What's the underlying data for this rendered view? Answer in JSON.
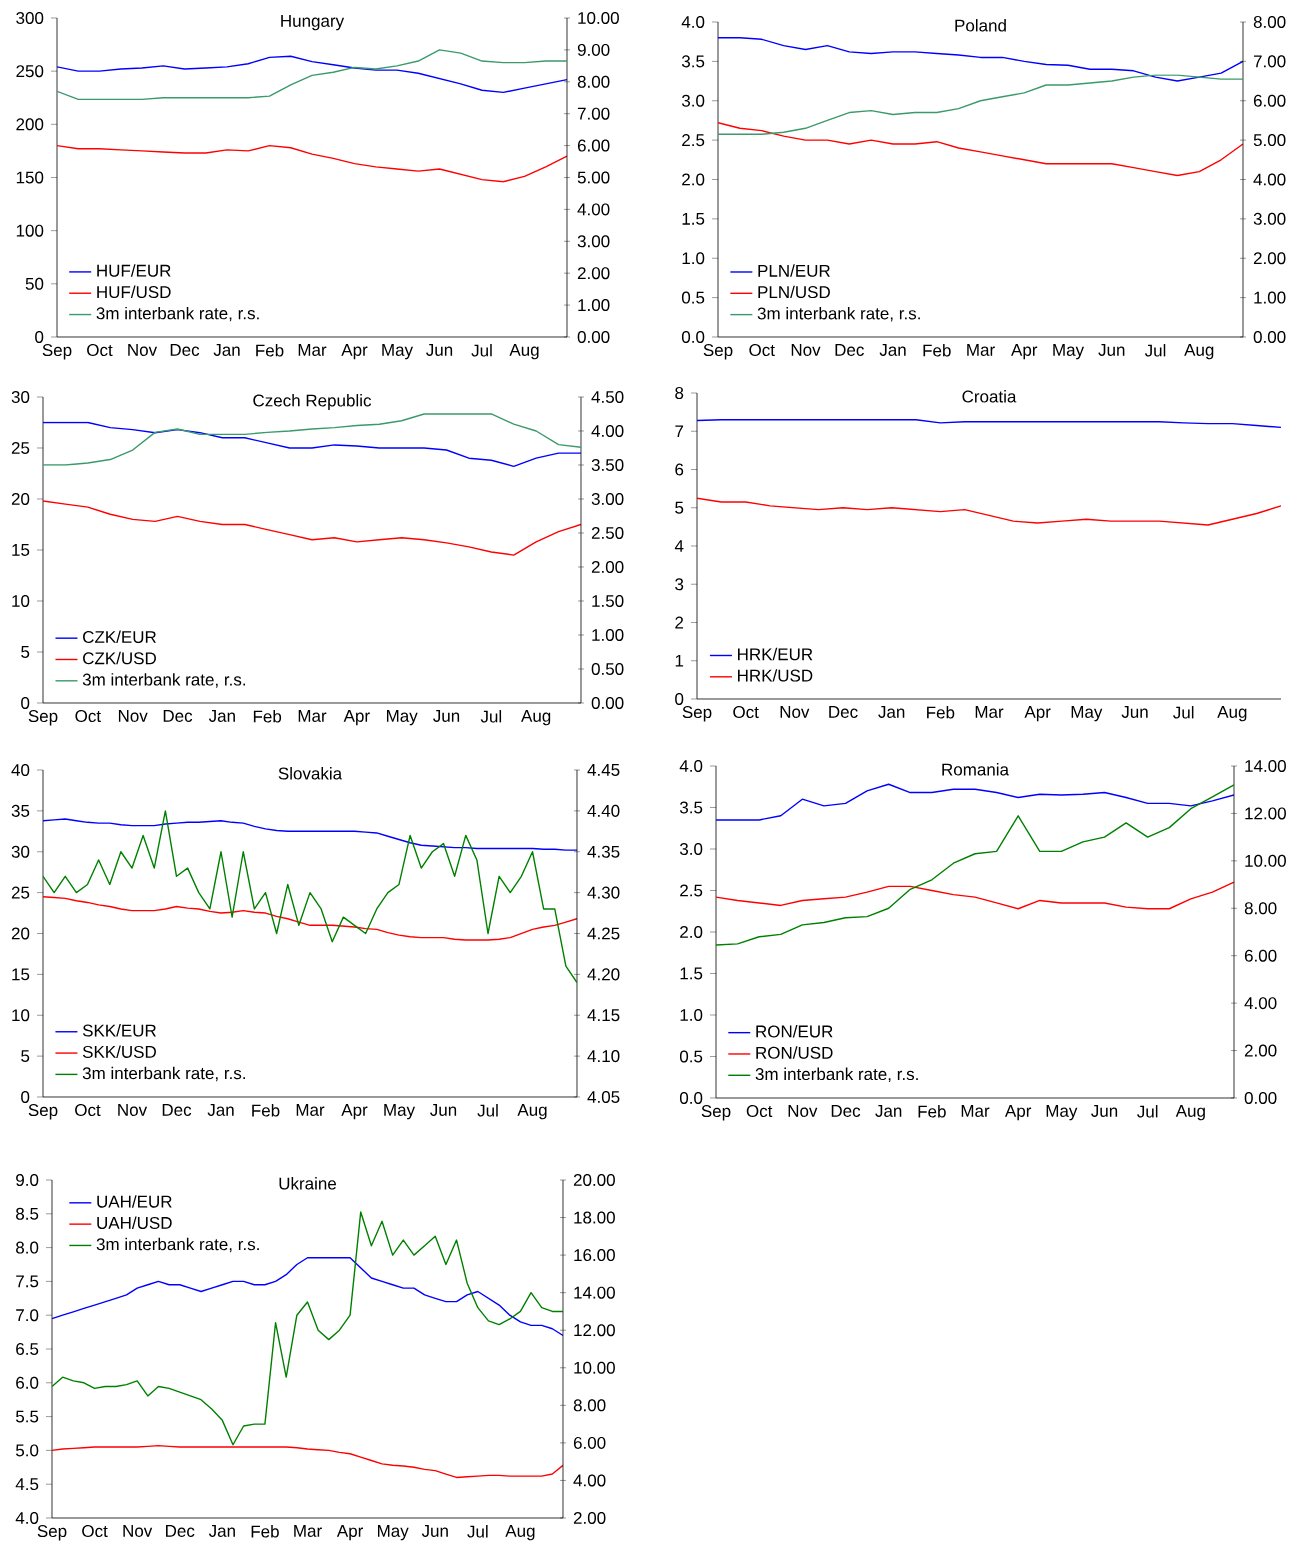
{
  "chart_data": [
    {
      "type": "line",
      "title": "Hungary",
      "legend": "bottom left",
      "categories": [
        "Sep",
        null,
        "Oct",
        null,
        "Nov",
        null,
        "Dec",
        null,
        "Jan",
        null,
        "Feb",
        null,
        "Mar",
        null,
        "Apr",
        null,
        "May",
        null,
        "Jun",
        null,
        "Jul",
        null,
        "Aug",
        null,
        null
      ],
      "ylim": [
        0,
        300
      ],
      "yticks": [
        0,
        50,
        100,
        150,
        200,
        250,
        300
      ],
      "y2lim": [
        0,
        10
      ],
      "y2ticks": [
        {
          "value": 0,
          "label": "0.00"
        },
        {
          "value": 1,
          "label": "1.00"
        },
        {
          "value": 2,
          "label": "2.00"
        },
        {
          "value": 3,
          "label": "3.00"
        },
        {
          "value": 4,
          "label": "4.00"
        },
        {
          "value": 5,
          "label": "5.00"
        },
        {
          "value": 6,
          "label": "6.00"
        },
        {
          "value": 7,
          "label": "7.00"
        },
        {
          "value": 8,
          "label": "8.00"
        },
        {
          "value": 9,
          "label": "9.00"
        },
        {
          "value": 10,
          "label": "10.00"
        }
      ],
      "series": [
        {
          "name": "HUF/EUR",
          "color": "#0000ff",
          "values": [
            254,
            250,
            250,
            252,
            253,
            255,
            252,
            253,
            254,
            257,
            263,
            264,
            259,
            256,
            253,
            251,
            251,
            248,
            243,
            238,
            232,
            230,
            234,
            238,
            242
          ]
        },
        {
          "name": "HUF/USD",
          "color": "#ff0000",
          "values": [
            180,
            177,
            177,
            176,
            175,
            174,
            173,
            173,
            176,
            175,
            180,
            178,
            172,
            168,
            163,
            160,
            158,
            156,
            158,
            153,
            148,
            146,
            151,
            160,
            170
          ]
        },
        {
          "name": "3m interbank rate, r.s.",
          "color": "#3a9a6a",
          "axis": "y2",
          "values": [
            7.7,
            7.45,
            7.45,
            7.45,
            7.45,
            7.5,
            7.5,
            7.5,
            7.5,
            7.5,
            7.55,
            7.9,
            8.2,
            8.3,
            8.45,
            8.4,
            8.5,
            8.65,
            9.0,
            8.9,
            8.65,
            8.6,
            8.6,
            8.65,
            8.65
          ]
        }
      ]
    },
    {
      "type": "line",
      "title": "Poland",
      "legend": "bottom left",
      "categories": [
        "Sep",
        null,
        "Oct",
        null,
        "Nov",
        null,
        "Dec",
        null,
        "Jan",
        null,
        "Feb",
        null,
        "Mar",
        null,
        "Apr",
        null,
        "May",
        null,
        "Jun",
        null,
        "Jul",
        null,
        "Aug",
        null,
        null
      ],
      "ylim": [
        0,
        4
      ],
      "yticks": [
        {
          "value": 0,
          "label": "0.0"
        },
        {
          "value": 0.5,
          "label": "0.5"
        },
        {
          "value": 1,
          "label": "1.0"
        },
        {
          "value": 1.5,
          "label": "1.5"
        },
        {
          "value": 2,
          "label": "2.0"
        },
        {
          "value": 2.5,
          "label": "2.5"
        },
        {
          "value": 3,
          "label": "3.0"
        },
        {
          "value": 3.5,
          "label": "3.5"
        },
        {
          "value": 4,
          "label": "4.0"
        }
      ],
      "y2lim": [
        0,
        8
      ],
      "y2ticks": [
        {
          "value": 0,
          "label": "0.00"
        },
        {
          "value": 1,
          "label": "1.00"
        },
        {
          "value": 2,
          "label": "2.00"
        },
        {
          "value": 3,
          "label": "3.00"
        },
        {
          "value": 4,
          "label": "4.00"
        },
        {
          "value": 5,
          "label": "5.00"
        },
        {
          "value": 6,
          "label": "6.00"
        },
        {
          "value": 7,
          "label": "7.00"
        },
        {
          "value": 8,
          "label": "8.00"
        }
      ],
      "series": [
        {
          "name": "PLN/EUR",
          "color": "#0000ff",
          "values": [
            3.8,
            3.8,
            3.78,
            3.7,
            3.65,
            3.7,
            3.62,
            3.6,
            3.62,
            3.62,
            3.6,
            3.58,
            3.55,
            3.55,
            3.5,
            3.46,
            3.45,
            3.4,
            3.4,
            3.38,
            3.3,
            3.25,
            3.3,
            3.35,
            3.5
          ]
        },
        {
          "name": "PLN/USD",
          "color": "#ff0000",
          "values": [
            2.72,
            2.65,
            2.62,
            2.55,
            2.5,
            2.5,
            2.45,
            2.5,
            2.45,
            2.45,
            2.48,
            2.4,
            2.35,
            2.3,
            2.25,
            2.2,
            2.2,
            2.2,
            2.2,
            2.15,
            2.1,
            2.05,
            2.1,
            2.25,
            2.45
          ]
        },
        {
          "name": "3m interbank rate, r.s.",
          "color": "#3a9a6a",
          "axis": "y2",
          "values": [
            5.15,
            5.15,
            5.15,
            5.2,
            5.3,
            5.5,
            5.7,
            5.75,
            5.65,
            5.7,
            5.7,
            5.8,
            6.0,
            6.1,
            6.2,
            6.4,
            6.4,
            6.45,
            6.5,
            6.6,
            6.65,
            6.65,
            6.6,
            6.55,
            6.55
          ]
        }
      ]
    },
    {
      "type": "line",
      "title": "Czech Republic",
      "legend": "bottom left",
      "categories": [
        "Sep",
        null,
        "Oct",
        null,
        "Nov",
        null,
        "Dec",
        null,
        "Jan",
        null,
        "Feb",
        null,
        "Mar",
        null,
        "Apr",
        null,
        "May",
        null,
        "Jun",
        null,
        "Jul",
        null,
        "Aug",
        null,
        null
      ],
      "ylim": [
        0,
        30
      ],
      "yticks": [
        0,
        5,
        10,
        15,
        20,
        25,
        30
      ],
      "y2lim": [
        0,
        4.5
      ],
      "y2ticks": [
        {
          "value": 0,
          "label": "0.00"
        },
        {
          "value": 0.5,
          "label": "0.50"
        },
        {
          "value": 1,
          "label": "1.00"
        },
        {
          "value": 1.5,
          "label": "1.50"
        },
        {
          "value": 2,
          "label": "2.00"
        },
        {
          "value": 2.5,
          "label": "2.50"
        },
        {
          "value": 3,
          "label": "3.00"
        },
        {
          "value": 3.5,
          "label": "3.50"
        },
        {
          "value": 4,
          "label": "4.00"
        },
        {
          "value": 4.5,
          "label": "4.50"
        }
      ],
      "series": [
        {
          "name": "CZK/EUR",
          "color": "#0000ff",
          "values": [
            27.5,
            27.5,
            27.5,
            27,
            26.8,
            26.5,
            26.8,
            26.5,
            26,
            26,
            25.5,
            25,
            25,
            25.3,
            25.2,
            25,
            25,
            25,
            24.8,
            24,
            23.8,
            23.2,
            24,
            24.5,
            24.5
          ]
        },
        {
          "name": "CZK/USD",
          "color": "#ff0000",
          "values": [
            19.8,
            19.5,
            19.2,
            18.5,
            18,
            17.8,
            18.3,
            17.8,
            17.5,
            17.5,
            17,
            16.5,
            16,
            16.2,
            15.8,
            16,
            16.2,
            16,
            15.7,
            15.3,
            14.8,
            14.5,
            15.8,
            16.8,
            17.5
          ]
        },
        {
          "name": "3m interbank rate, r.s.",
          "color": "#3a9a6a",
          "axis": "y2",
          "values": [
            3.5,
            3.5,
            3.53,
            3.58,
            3.72,
            3.98,
            4.03,
            3.95,
            3.95,
            3.95,
            3.98,
            4.0,
            4.03,
            4.05,
            4.08,
            4.1,
            4.15,
            4.25,
            4.25,
            4.25,
            4.25,
            4.1,
            4.0,
            3.8,
            3.76
          ]
        }
      ]
    },
    {
      "type": "line",
      "title": "Croatia",
      "legend": "bottom left",
      "categories": [
        "Sep",
        null,
        "Oct",
        null,
        "Nov",
        null,
        "Dec",
        null,
        "Jan",
        null,
        "Feb",
        null,
        "Mar",
        null,
        "Apr",
        null,
        "May",
        null,
        "Jun",
        null,
        "Jul",
        null,
        "Aug",
        null,
        null
      ],
      "ylim": [
        0,
        8
      ],
      "yticks": [
        0,
        1,
        2,
        3,
        4,
        5,
        6,
        7,
        8
      ],
      "series": [
        {
          "name": "HRK/EUR",
          "color": "#0000ff",
          "values": [
            7.28,
            7.3,
            7.3,
            7.3,
            7.3,
            7.3,
            7.3,
            7.3,
            7.3,
            7.3,
            7.22,
            7.25,
            7.25,
            7.25,
            7.25,
            7.25,
            7.25,
            7.25,
            7.25,
            7.25,
            7.22,
            7.2,
            7.2,
            7.15,
            7.1
          ]
        },
        {
          "name": "HRK/USD",
          "color": "#ff0000",
          "values": [
            5.25,
            5.15,
            5.15,
            5.05,
            5.0,
            4.95,
            5.0,
            4.95,
            5.0,
            4.95,
            4.9,
            4.95,
            4.8,
            4.65,
            4.6,
            4.65,
            4.7,
            4.65,
            4.65,
            4.65,
            4.6,
            4.55,
            4.7,
            4.85,
            5.05
          ]
        }
      ]
    },
    {
      "type": "line",
      "title": "Slovakia",
      "legend": "bottom left",
      "categories": [
        "Sep",
        null,
        null,
        null,
        "Oct",
        null,
        null,
        null,
        "Nov",
        null,
        null,
        null,
        "Dec",
        null,
        null,
        null,
        "Jan",
        null,
        null,
        null,
        "Feb",
        null,
        null,
        null,
        "Mar",
        null,
        null,
        null,
        "Apr",
        null,
        null,
        null,
        "May",
        null,
        null,
        null,
        "Jun",
        null,
        null,
        null,
        "Jul",
        null,
        null,
        null,
        "Aug",
        null,
        null,
        null,
        null
      ],
      "ylim": [
        0,
        40
      ],
      "yticks": [
        0,
        5,
        10,
        15,
        20,
        25,
        30,
        35,
        40
      ],
      "y2lim": [
        4.05,
        4.45
      ],
      "y2ticks": [
        {
          "value": 4.05,
          "label": "4.05"
        },
        {
          "value": 4.1,
          "label": "4.10"
        },
        {
          "value": 4.15,
          "label": "4.15"
        },
        {
          "value": 4.2,
          "label": "4.20"
        },
        {
          "value": 4.25,
          "label": "4.25"
        },
        {
          "value": 4.3,
          "label": "4.30"
        },
        {
          "value": 4.35,
          "label": "4.35"
        },
        {
          "value": 4.4,
          "label": "4.40"
        },
        {
          "value": 4.45,
          "label": "4.45"
        }
      ],
      "series": [
        {
          "name": "SKK/EUR",
          "color": "#0000ff",
          "values": [
            33.8,
            33.9,
            34,
            33.8,
            33.6,
            33.5,
            33.5,
            33.3,
            33.2,
            33.2,
            33.2,
            33.4,
            33.5,
            33.6,
            33.6,
            33.7,
            33.8,
            33.6,
            33.5,
            33.1,
            32.8,
            32.6,
            32.5,
            32.5,
            32.5,
            32.5,
            32.5,
            32.5,
            32.5,
            32.4,
            32.3,
            31.9,
            31.5,
            31.1,
            30.8,
            30.7,
            30.6,
            30.5,
            30.5,
            30.4,
            30.4,
            30.4,
            30.4,
            30.4,
            30.4,
            30.3,
            30.3,
            30.2,
            30.2
          ]
        },
        {
          "name": "SKK/USD",
          "color": "#ff0000",
          "values": [
            24.5,
            24.4,
            24.3,
            24.0,
            23.8,
            23.5,
            23.3,
            23.0,
            22.8,
            22.8,
            22.8,
            23.0,
            23.3,
            23.1,
            23.0,
            22.7,
            22.5,
            22.6,
            22.8,
            22.6,
            22.5,
            22.1,
            21.8,
            21.4,
            21.0,
            21.0,
            21.0,
            20.9,
            20.8,
            20.6,
            20.5,
            20.1,
            19.8,
            19.6,
            19.5,
            19.5,
            19.5,
            19.3,
            19.2,
            19.2,
            19.2,
            19.3,
            19.5,
            20.0,
            20.5,
            20.8,
            21.0,
            21.4,
            21.8
          ]
        },
        {
          "name": "3m interbank rate, r.s.",
          "color": "#008000",
          "axis": "y2",
          "values": [
            4.32,
            4.3,
            4.32,
            4.3,
            4.31,
            4.34,
            4.31,
            4.35,
            4.33,
            4.37,
            4.33,
            4.4,
            4.32,
            4.33,
            4.3,
            4.28,
            4.35,
            4.27,
            4.35,
            4.28,
            4.3,
            4.25,
            4.31,
            4.26,
            4.3,
            4.28,
            4.24,
            4.27,
            4.26,
            4.25,
            4.28,
            4.3,
            4.31,
            4.37,
            4.33,
            4.35,
            4.36,
            4.32,
            4.37,
            4.34,
            4.25,
            4.32,
            4.3,
            4.32,
            4.35,
            4.28,
            4.28,
            4.21,
            4.19
          ]
        }
      ]
    },
    {
      "type": "line",
      "title": "Romania",
      "legend": "bottom left",
      "categories": [
        "Sep",
        null,
        "Oct",
        null,
        "Nov",
        null,
        "Dec",
        null,
        "Jan",
        null,
        "Feb",
        null,
        "Mar",
        null,
        "Apr",
        null,
        "May",
        null,
        "Jun",
        null,
        "Jul",
        null,
        "Aug",
        null,
        null
      ],
      "ylim": [
        0,
        4
      ],
      "yticks": [
        {
          "value": 0,
          "label": "0.0"
        },
        {
          "value": 0.5,
          "label": "0.5"
        },
        {
          "value": 1,
          "label": "1.0"
        },
        {
          "value": 1.5,
          "label": "1.5"
        },
        {
          "value": 2,
          "label": "2.0"
        },
        {
          "value": 2.5,
          "label": "2.5"
        },
        {
          "value": 3,
          "label": "3.0"
        },
        {
          "value": 3.5,
          "label": "3.5"
        },
        {
          "value": 4,
          "label": "4.0"
        }
      ],
      "y2lim": [
        0,
        14
      ],
      "y2ticks": [
        {
          "value": 0,
          "label": "0.00"
        },
        {
          "value": 2,
          "label": "2.00"
        },
        {
          "value": 4,
          "label": "4.00"
        },
        {
          "value": 6,
          "label": "6.00"
        },
        {
          "value": 8,
          "label": "8.00"
        },
        {
          "value": 10,
          "label": "10.00"
        },
        {
          "value": 12,
          "label": "12.00"
        },
        {
          "value": 14,
          "label": "14.00"
        }
      ],
      "series": [
        {
          "name": "RON/EUR",
          "color": "#0000ff",
          "values": [
            3.35,
            3.35,
            3.35,
            3.4,
            3.6,
            3.52,
            3.55,
            3.7,
            3.78,
            3.68,
            3.68,
            3.72,
            3.72,
            3.68,
            3.62,
            3.66,
            3.65,
            3.66,
            3.68,
            3.62,
            3.55,
            3.55,
            3.52,
            3.58,
            3.65
          ]
        },
        {
          "name": "RON/USD",
          "color": "#ff0000",
          "values": [
            2.42,
            2.38,
            2.35,
            2.32,
            2.38,
            2.4,
            2.42,
            2.48,
            2.55,
            2.55,
            2.5,
            2.45,
            2.42,
            2.35,
            2.28,
            2.38,
            2.35,
            2.35,
            2.35,
            2.3,
            2.28,
            2.28,
            2.4,
            2.48,
            2.6
          ]
        },
        {
          "name": "3m interbank rate, r.s.",
          "color": "#008000",
          "axis": "y2",
          "values": [
            6.45,
            6.5,
            6.8,
            6.9,
            7.3,
            7.4,
            7.6,
            7.65,
            8.0,
            8.8,
            9.2,
            9.9,
            10.3,
            10.4,
            11.9,
            10.4,
            10.4,
            10.8,
            11.0,
            11.6,
            11.0,
            11.4,
            12.2,
            12.7,
            13.2
          ]
        }
      ]
    },
    {
      "type": "line",
      "title": "Ukraine",
      "legend": "top left",
      "categories": [
        "Sep",
        null,
        null,
        null,
        "Oct",
        null,
        null,
        null,
        "Nov",
        null,
        null,
        null,
        "Dec",
        null,
        null,
        null,
        "Jan",
        null,
        null,
        null,
        "Feb",
        null,
        null,
        null,
        "Mar",
        null,
        null,
        null,
        "Apr",
        null,
        null,
        null,
        "May",
        null,
        null,
        null,
        "Jun",
        null,
        null,
        null,
        "Jul",
        null,
        null,
        null,
        "Aug",
        null,
        null,
        null,
        null
      ],
      "ylim": [
        4,
        9
      ],
      "yticks": [
        {
          "value": 4,
          "label": "4.0"
        },
        {
          "value": 4.5,
          "label": "4.5"
        },
        {
          "value": 5,
          "label": "5.0"
        },
        {
          "value": 5.5,
          "label": "5.5"
        },
        {
          "value": 6,
          "label": "6.0"
        },
        {
          "value": 6.5,
          "label": "6.5"
        },
        {
          "value": 7,
          "label": "7.0"
        },
        {
          "value": 7.5,
          "label": "7.5"
        },
        {
          "value": 8,
          "label": "8.0"
        },
        {
          "value": 8.5,
          "label": "8.5"
        },
        {
          "value": 9,
          "label": "9.0"
        }
      ],
      "y2lim": [
        2,
        20
      ],
      "y2ticks": [
        {
          "value": 2,
          "label": "2.00"
        },
        {
          "value": 4,
          "label": "4.00"
        },
        {
          "value": 6,
          "label": "6.00"
        },
        {
          "value": 8,
          "label": "8.00"
        },
        {
          "value": 10,
          "label": "10.00"
        },
        {
          "value": 12,
          "label": "12.00"
        },
        {
          "value": 14,
          "label": "14.00"
        },
        {
          "value": 16,
          "label": "16.00"
        },
        {
          "value": 18,
          "label": "18.00"
        },
        {
          "value": 20,
          "label": "20.00"
        }
      ],
      "series": [
        {
          "name": "UAH/EUR",
          "color": "#0000ff",
          "values": [
            6.95,
            7.0,
            7.05,
            7.1,
            7.15,
            7.2,
            7.25,
            7.3,
            7.4,
            7.45,
            7.5,
            7.45,
            7.45,
            7.4,
            7.35,
            7.4,
            7.45,
            7.5,
            7.5,
            7.45,
            7.45,
            7.5,
            7.6,
            7.75,
            7.85,
            7.85,
            7.85,
            7.85,
            7.85,
            7.7,
            7.55,
            7.5,
            7.45,
            7.4,
            7.4,
            7.3,
            7.25,
            7.2,
            7.2,
            7.3,
            7.35,
            7.25,
            7.15,
            7.0,
            6.9,
            6.85,
            6.85,
            6.8,
            6.7
          ]
        },
        {
          "name": "UAH/USD",
          "color": "#ff0000",
          "values": [
            5.0,
            5.02,
            5.03,
            5.04,
            5.05,
            5.05,
            5.05,
            5.05,
            5.05,
            5.06,
            5.07,
            5.06,
            5.05,
            5.05,
            5.05,
            5.05,
            5.05,
            5.05,
            5.05,
            5.05,
            5.05,
            5.05,
            5.05,
            5.04,
            5.02,
            5.01,
            5.0,
            4.97,
            4.95,
            4.9,
            4.85,
            4.8,
            4.78,
            4.77,
            4.75,
            4.72,
            4.7,
            4.65,
            4.6,
            4.61,
            4.62,
            4.63,
            4.63,
            4.62,
            4.62,
            4.62,
            4.62,
            4.65,
            4.78
          ]
        },
        {
          "name": "3m interbank rate, r.s.",
          "color": "#008000",
          "axis": "y2",
          "values": [
            9.0,
            9.5,
            9.3,
            9.2,
            8.9,
            9.0,
            9.0,
            9.1,
            9.3,
            8.5,
            9.0,
            8.9,
            8.7,
            8.5,
            8.3,
            7.8,
            7.2,
            5.9,
            6.9,
            7.0,
            7.0,
            12.4,
            9.5,
            12.8,
            13.5,
            12.0,
            11.5,
            12.0,
            12.8,
            18.3,
            16.5,
            17.8,
            16.0,
            16.8,
            16.0,
            16.5,
            17.0,
            15.5,
            16.8,
            14.5,
            13.2,
            12.5,
            12.3,
            12.6,
            13.0,
            14.0,
            13.2,
            13.0,
            13.0
          ]
        }
      ]
    }
  ]
}
